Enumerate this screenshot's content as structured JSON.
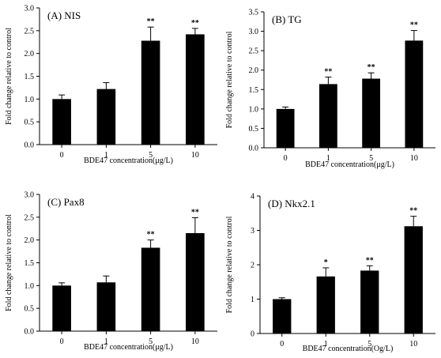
{
  "chart_data": [
    {
      "type": "bar",
      "title": "(A) NIS",
      "xlabel": "BDE47 concentration(μg/L)",
      "ylabel": "Fold change relative to control",
      "categories": [
        "0",
        "1",
        "5",
        "10"
      ],
      "values": [
        1.0,
        1.22,
        2.28,
        2.42
      ],
      "errors": [
        0.09,
        0.14,
        0.3,
        0.13
      ],
      "annotations": [
        "",
        "",
        "**",
        "**"
      ],
      "ylim": [
        0,
        3.0
      ],
      "yticks": [
        "0.0",
        "0.5",
        "1.0",
        "1.5",
        "2.0",
        "2.5",
        "3.0"
      ],
      "grid": false,
      "bar_color": "#000000"
    },
    {
      "type": "bar",
      "title": "(B) TG",
      "xlabel": "BDE47 concentration(μg/L)",
      "ylabel": "Fold change relative to control",
      "categories": [
        "0",
        "1",
        "5",
        "10"
      ],
      "values": [
        1.0,
        1.64,
        1.78,
        2.76
      ],
      "errors": [
        0.05,
        0.18,
        0.15,
        0.26
      ],
      "annotations": [
        "",
        "**",
        "**",
        "**"
      ],
      "ylim": [
        0,
        3.5
      ],
      "yticks": [
        "0.0",
        "0.5",
        "1.0",
        "1.5",
        "2.0",
        "2.5",
        "3.0",
        "3.5"
      ],
      "grid": false,
      "bar_color": "#000000"
    },
    {
      "type": "bar",
      "title": "(C) Pax8",
      "xlabel": "BDE47 concentration(μg/L)",
      "ylabel": "Fold change relative to control",
      "categories": [
        "0",
        "1",
        "5",
        "10"
      ],
      "values": [
        1.0,
        1.07,
        1.83,
        2.15
      ],
      "errors": [
        0.06,
        0.14,
        0.17,
        0.34
      ],
      "annotations": [
        "",
        "",
        "**",
        "**"
      ],
      "ylim": [
        0,
        3.0
      ],
      "yticks": [
        "0.0",
        "0.5",
        "1.0",
        "1.5",
        "2.0",
        "2.5",
        "3.0"
      ],
      "grid": false,
      "bar_color": "#000000"
    },
    {
      "type": "bar",
      "title": "(D) Nkx2.1",
      "xlabel": "BDE47 concentration(Og/L)",
      "ylabel": "Fold change relative to control",
      "categories": [
        "0",
        "1",
        "5",
        "10"
      ],
      "values": [
        1.0,
        1.66,
        1.83,
        3.12
      ],
      "errors": [
        0.04,
        0.25,
        0.14,
        0.29
      ],
      "annotations": [
        "",
        "*",
        "**",
        "**"
      ],
      "ylim": [
        0,
        4
      ],
      "yticks": [
        "0",
        "1",
        "2",
        "3",
        "4"
      ],
      "grid": false,
      "bar_color": "#000000"
    }
  ]
}
